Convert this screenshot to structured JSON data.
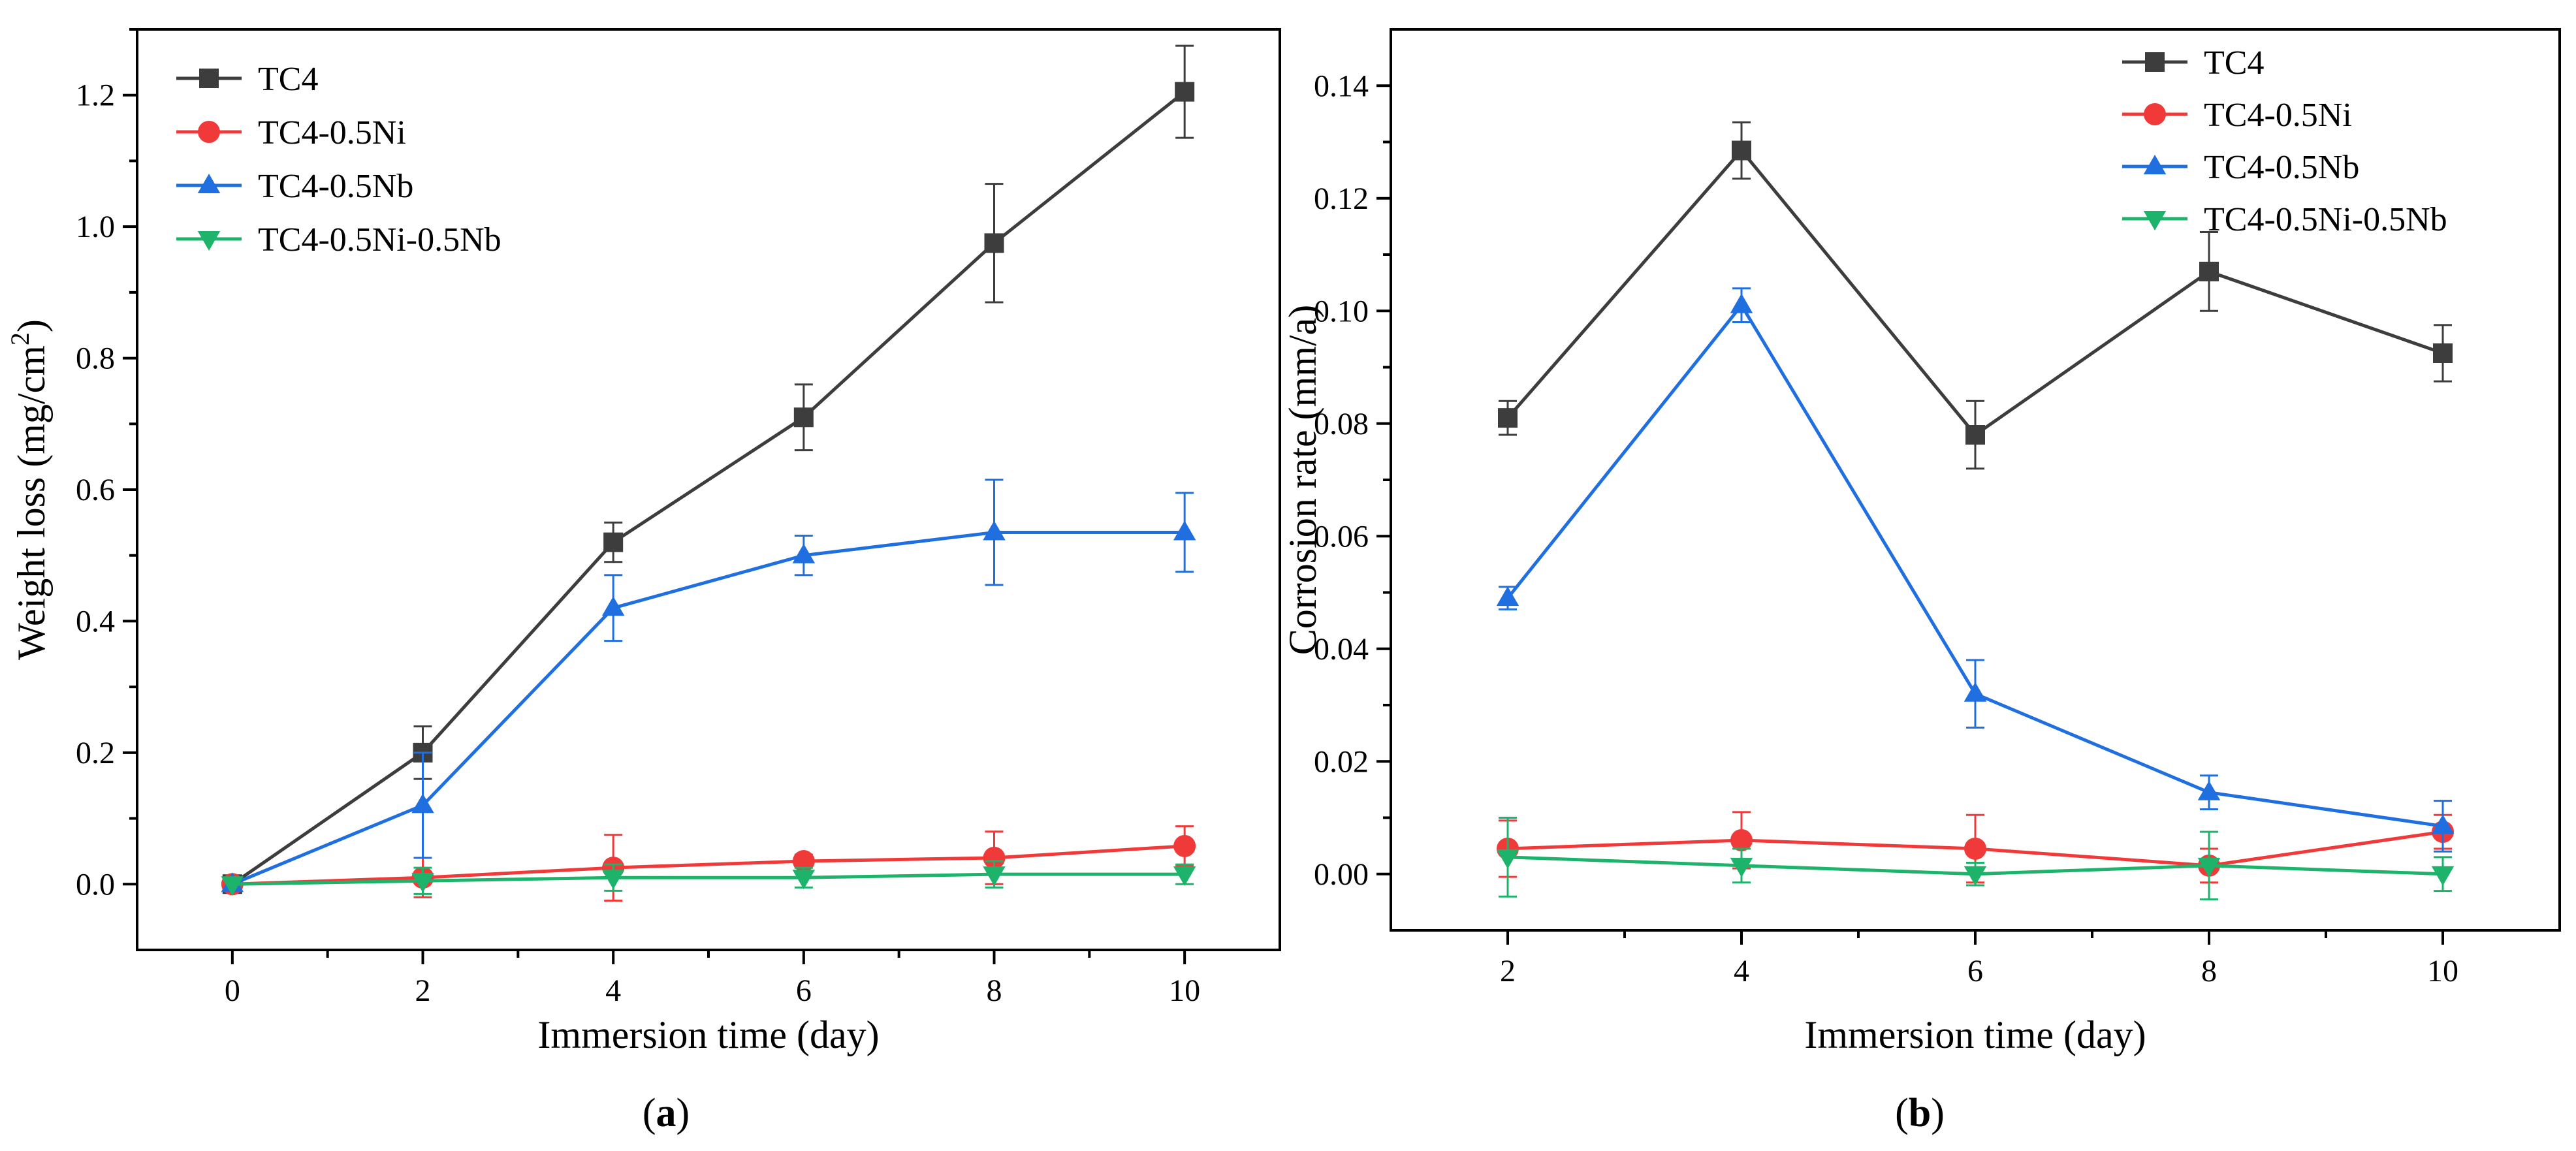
{
  "colors": {
    "TC4": "#3d3d3d",
    "TC4-0.5Ni": "#f03a3a",
    "TC4-0.5Nb": "#1f6fe0",
    "TC4-0.5Ni-0.5Nb": "#1db36b"
  },
  "chart_data": [
    {
      "type": "line",
      "panel_label": "a",
      "xlabel": "Immersion time (day)",
      "ylabel": "Weight loss (mg/cm2)",
      "ylabel_main": "Weight loss (mg/cm",
      "ylabel_sup": "2",
      "ylabel_tail": ")",
      "xlim": [
        -1,
        11
      ],
      "ylim": [
        -0.1,
        1.3
      ],
      "xticks": [
        0,
        2,
        4,
        6,
        8,
        10
      ],
      "xtick_labels": [
        "0",
        "2",
        "4",
        "6",
        "8",
        "10"
      ],
      "yticks": [
        0.0,
        0.2,
        0.4,
        0.6,
        0.8,
        1.0,
        1.2
      ],
      "ytick_labels": [
        "0.0",
        "0.2",
        "0.4",
        "0.6",
        "0.8",
        "1.0",
        "1.2"
      ],
      "legend_position": "top-left",
      "x": [
        0,
        2,
        4,
        6,
        8,
        10
      ],
      "series": [
        {
          "name": "TC4",
          "marker": "square",
          "values": [
            0.0,
            0.2,
            0.52,
            0.71,
            0.975,
            1.205
          ],
          "errors": [
            0.0,
            0.04,
            0.03,
            0.05,
            0.09,
            0.07
          ]
        },
        {
          "name": "TC4-0.5Ni",
          "marker": "circle",
          "values": [
            0.0,
            0.01,
            0.025,
            0.035,
            0.04,
            0.058
          ],
          "errors": [
            0.0,
            0.03,
            0.05,
            0.01,
            0.04,
            0.03
          ]
        },
        {
          "name": "TC4-0.5Nb",
          "marker": "triangle-up",
          "values": [
            0.0,
            0.12,
            0.42,
            0.5,
            0.535,
            0.535
          ],
          "errors": [
            0.0,
            0.08,
            0.05,
            0.03,
            0.08,
            0.06
          ]
        },
        {
          "name": "TC4-0.5Ni-0.5Nb",
          "marker": "triangle-down",
          "values": [
            0.0,
            0.005,
            0.01,
            0.01,
            0.015,
            0.015
          ],
          "errors": [
            0.0,
            0.02,
            0.02,
            0.015,
            0.02,
            0.015
          ]
        }
      ]
    },
    {
      "type": "line",
      "panel_label": "b",
      "xlabel": "Immersion time (day)",
      "ylabel": "Corrosion rate (mm/a)",
      "xlim": [
        1,
        11
      ],
      "ylim": [
        -0.01,
        0.15
      ],
      "xticks": [
        2,
        4,
        6,
        8,
        10
      ],
      "xtick_labels": [
        "2",
        "4",
        "6",
        "8",
        "10"
      ],
      "yticks": [
        0.0,
        0.02,
        0.04,
        0.06,
        0.08,
        0.1,
        0.12,
        0.14
      ],
      "ytick_labels": [
        "0.00",
        "0.02",
        "0.04",
        "0.06",
        "0.08",
        "0.10",
        "0.12",
        "0.14"
      ],
      "legend_position": "top-right",
      "x": [
        2,
        4,
        6,
        8,
        10
      ],
      "series": [
        {
          "name": "TC4",
          "marker": "square",
          "values": [
            0.081,
            0.1285,
            0.078,
            0.107,
            0.0925
          ],
          "errors": [
            0.003,
            0.005,
            0.006,
            0.007,
            0.005
          ]
        },
        {
          "name": "TC4-0.5Ni",
          "marker": "circle",
          "values": [
            0.0045,
            0.006,
            0.0045,
            0.0015,
            0.0075
          ],
          "errors": [
            0.005,
            0.005,
            0.006,
            0.003,
            0.003
          ]
        },
        {
          "name": "TC4-0.5Nb",
          "marker": "triangle-up",
          "values": [
            0.049,
            0.101,
            0.032,
            0.0145,
            0.0085
          ],
          "errors": [
            0.002,
            0.003,
            0.006,
            0.003,
            0.0045
          ]
        },
        {
          "name": "TC4-0.5Ni-0.5Nb",
          "marker": "triangle-down",
          "values": [
            0.003,
            0.0015,
            0.0,
            0.0015,
            0.0
          ],
          "errors": [
            0.007,
            0.003,
            0.002,
            0.006,
            0.003
          ]
        }
      ]
    }
  ]
}
